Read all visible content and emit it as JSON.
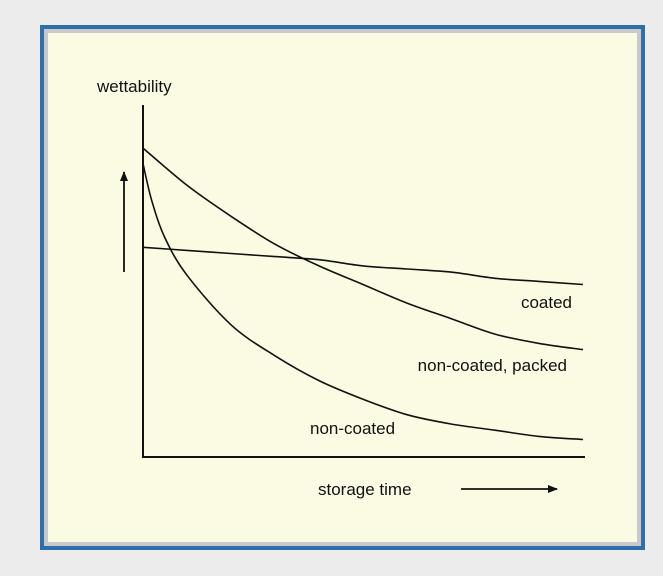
{
  "chart_data": {
    "type": "line",
    "xlabel": "storage time",
    "ylabel": "wettability",
    "xlim": [
      0,
      1
    ],
    "ylim": [
      0,
      1
    ],
    "grid": false,
    "legend": "none",
    "series": [
      {
        "name": "coated",
        "x": [
          0,
          0.1,
          0.2,
          0.3,
          0.4,
          0.5,
          0.6,
          0.7,
          0.8,
          0.9,
          1.0
        ],
        "y": [
          0.67,
          0.66,
          0.65,
          0.64,
          0.63,
          0.61,
          0.6,
          0.59,
          0.57,
          0.56,
          0.55
        ]
      },
      {
        "name": "non-coated,   packed",
        "x": [
          0,
          0.1,
          0.2,
          0.3,
          0.4,
          0.5,
          0.6,
          0.7,
          0.8,
          0.9,
          1.0
        ],
        "y": [
          0.99,
          0.87,
          0.77,
          0.68,
          0.61,
          0.55,
          0.49,
          0.44,
          0.39,
          0.36,
          0.34
        ]
      },
      {
        "name": "non-coated",
        "x": [
          0,
          0.02,
          0.05,
          0.1,
          0.2,
          0.3,
          0.4,
          0.5,
          0.6,
          0.7,
          0.8,
          0.9,
          1.0
        ],
        "y": [
          0.94,
          0.82,
          0.7,
          0.58,
          0.42,
          0.32,
          0.24,
          0.18,
          0.13,
          0.1,
          0.08,
          0.06,
          0.05
        ]
      }
    ]
  }
}
